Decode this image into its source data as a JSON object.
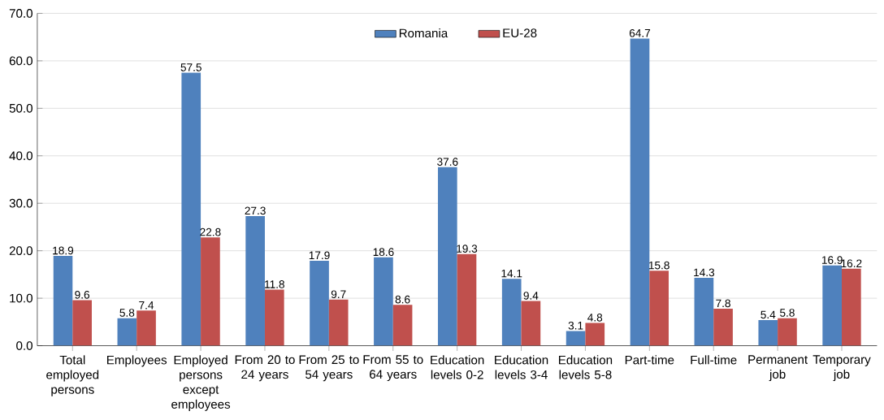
{
  "chart_data": {
    "type": "bar",
    "categories": [
      "Total employed persons",
      "Employees",
      "Employed persons except employees",
      "From 20 to 24 years",
      "From 25 to 54 years",
      "From 55 to 64 years",
      "Education levels 0-2",
      "Education levels 3-4",
      "Education levels 5-8",
      "Part-time",
      "Full-time",
      "Permanent job",
      "Temporary job"
    ],
    "series": [
      {
        "name": "Romania",
        "color": "#4f81bd",
        "values": [
          18.9,
          5.8,
          57.5,
          27.3,
          17.9,
          18.6,
          37.6,
          14.1,
          3.1,
          64.7,
          14.3,
          5.4,
          16.9
        ]
      },
      {
        "name": "EU-28",
        "color": "#c0504d",
        "values": [
          9.6,
          7.4,
          22.8,
          11.8,
          9.7,
          8.6,
          19.3,
          9.4,
          4.8,
          15.8,
          7.8,
          5.8,
          16.2
        ]
      }
    ],
    "ylim": [
      0,
      70
    ],
    "yticks": [
      {
        "value": 0,
        "label": "0.0"
      },
      {
        "value": 10,
        "label": "10.0"
      },
      {
        "value": 20,
        "label": "20.0"
      },
      {
        "value": 30,
        "label": "30.0"
      },
      {
        "value": 40,
        "label": "40.0"
      },
      {
        "value": 50,
        "label": "50.0"
      },
      {
        "value": 60,
        "label": "60.0"
      },
      {
        "value": 70,
        "label": "70.0"
      }
    ],
    "grid": "y",
    "legend": "top",
    "data_labels": true
  }
}
